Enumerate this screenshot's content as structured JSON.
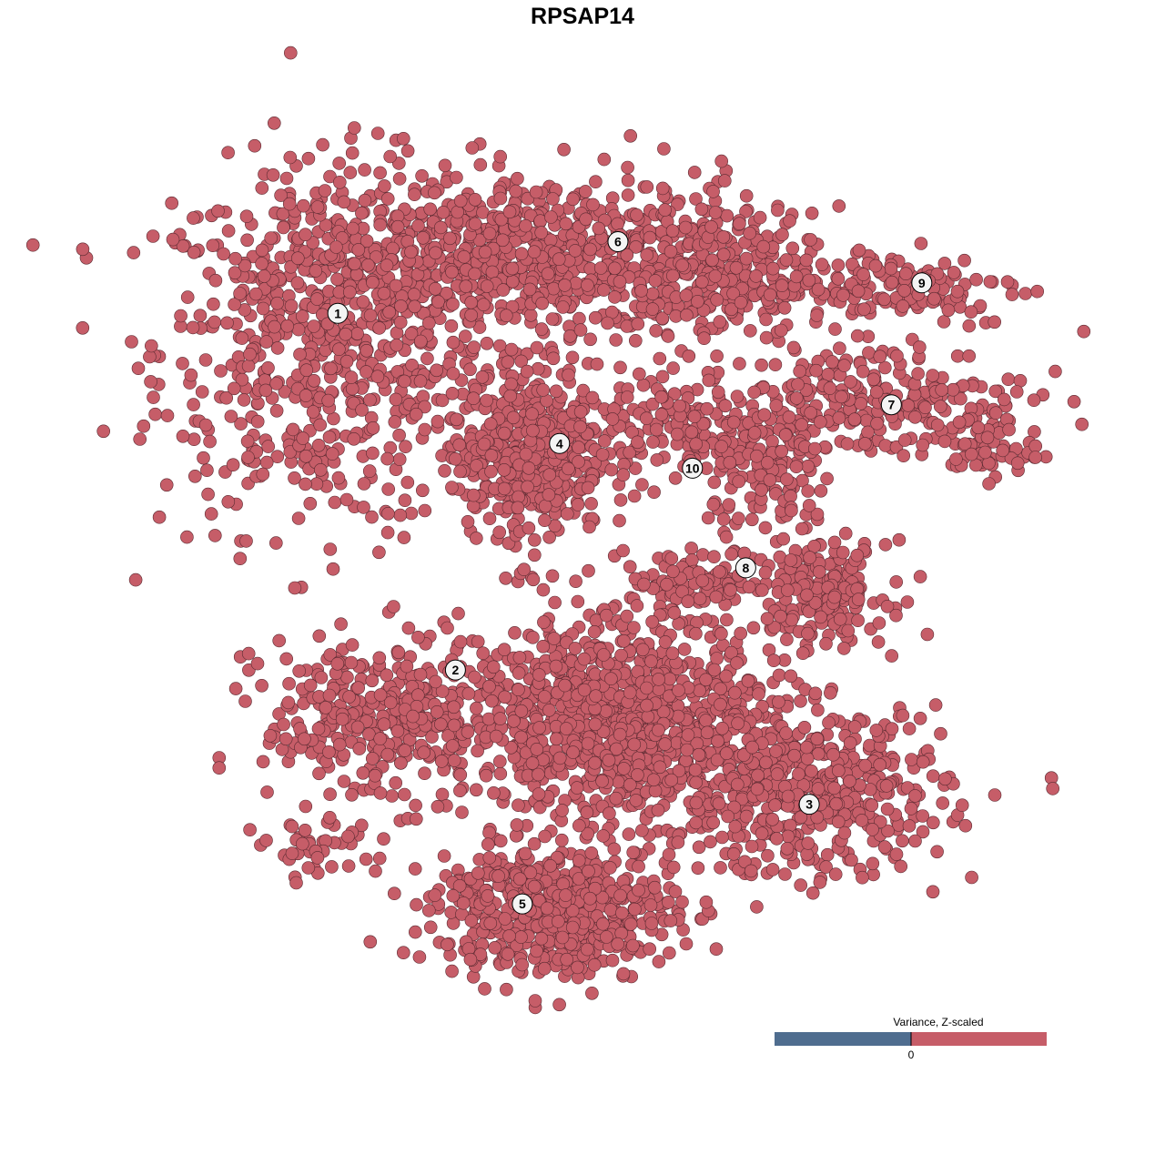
{
  "chart_data": {
    "type": "scatter",
    "title": "RPSAP14",
    "xlabel": "",
    "ylabel": "",
    "xlim": [
      -50,
      50
    ],
    "ylim": [
      -50,
      50
    ],
    "grid": false,
    "point_color": "#C65D68",
    "point_stroke": "#5A2A31",
    "cluster_labels": [
      {
        "label": "1",
        "x": -31.6,
        "y": 32.4
      },
      {
        "label": "6",
        "x": 1.5,
        "y": 41.1
      },
      {
        "label": "9",
        "x": 37.4,
        "y": 36.1
      },
      {
        "label": "7",
        "x": 33.8,
        "y": 21.3
      },
      {
        "label": "4",
        "x": -5.4,
        "y": 16.6
      },
      {
        "label": "10",
        "x": 10.3,
        "y": 13.6
      },
      {
        "label": "8",
        "x": 16.6,
        "y": 1.5
      },
      {
        "label": "2",
        "x": -17.7,
        "y": -10.9
      },
      {
        "label": "3",
        "x": 24.1,
        "y": -27.2
      },
      {
        "label": "5",
        "x": -9.8,
        "y": -39.3
      }
    ],
    "point_groups": [
      {
        "cluster": "1",
        "cx": -32.8,
        "cy": 28,
        "sx": 10,
        "sy": 11,
        "n": 650
      },
      {
        "cluster": "6",
        "cx": -9.1,
        "cy": 39.4,
        "sx": 14,
        "sy": 5,
        "n": 800
      },
      {
        "cluster": "6",
        "cx": 12.4,
        "cy": 36.5,
        "sx": 6,
        "sy": 4,
        "n": 200
      },
      {
        "cluster": "9",
        "cx": 33.9,
        "cy": 35.6,
        "sx": 8,
        "sy": 2.5,
        "n": 150
      },
      {
        "cluster": "7",
        "cx": 31.7,
        "cy": 21.8,
        "sx": 9,
        "sy": 3.5,
        "n": 250
      },
      {
        "cluster": "7",
        "cx": 44.6,
        "cy": 16.2,
        "sx": 3,
        "sy": 2,
        "n": 60
      },
      {
        "cluster": "4",
        "cx": -9.1,
        "cy": 15.7,
        "sx": 4.5,
        "sy": 5,
        "n": 500
      },
      {
        "cluster": "10",
        "cx": 9.1,
        "cy": 18.5,
        "sx": 5,
        "sy": 3.5,
        "n": 150
      },
      {
        "cluster": "8",
        "cx": 19.9,
        "cy": 12.9,
        "sx": 3.5,
        "sy": 4,
        "n": 120
      },
      {
        "cluster": "8",
        "cx": 25.3,
        "cy": -1.4,
        "sx": 4,
        "sy": 3,
        "n": 200
      },
      {
        "cluster": "8",
        "cx": 10.2,
        "cy": -0.3,
        "sx": 5,
        "sy": 2,
        "n": 100
      },
      {
        "cluster": "2",
        "cx": -26.3,
        "cy": -16.9,
        "sx": 7,
        "sy": 5,
        "n": 350
      },
      {
        "cluster": "2",
        "cx": -33.9,
        "cy": -32.4,
        "sx": 3,
        "sy": 2,
        "n": 40
      },
      {
        "cluster": "2",
        "cx": 1.6,
        "cy": -16.9,
        "sx": 9,
        "sy": 6,
        "n": 1000
      },
      {
        "cluster": "3",
        "cx": 24.2,
        "cy": -25.7,
        "sx": 8,
        "sy": 5,
        "n": 500
      },
      {
        "cluster": "5",
        "cx": -5.9,
        "cy": -40.1,
        "sx": 7,
        "sy": 4,
        "n": 600
      }
    ]
  },
  "legend": {
    "title": "Variance, Z-scaled",
    "tick": "0",
    "low_color": "#4F6D8F",
    "high_color": "#C65D68"
  }
}
